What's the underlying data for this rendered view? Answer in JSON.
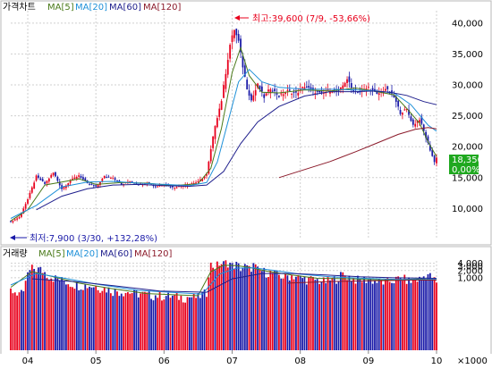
{
  "colors": {
    "up": "#e8001c",
    "down": "#1a1aa8",
    "ma5": "#4a7a1a",
    "ma20": "#1e90d8",
    "ma60": "#1e1e8c",
    "ma120": "#8b1a2a",
    "grid": "#cfcfcf",
    "current_price_box": "#1fa81f"
  },
  "chart_data": [
    {
      "type": "candlestick",
      "title": "가격차트",
      "legend": [
        "MA[5]",
        "MA[20]",
        "MA[60]",
        "MA[120]"
      ],
      "ylim": [
        5000,
        42000
      ],
      "y_ticks": [
        10000,
        15000,
        20000,
        25000,
        30000,
        35000,
        40000
      ],
      "y_tick_labels": [
        "10,000",
        "15,000",
        "20,000",
        "25,000",
        "30,000",
        "35,000",
        "40,000"
      ],
      "x_tick_labels": [
        "04",
        "05",
        "06",
        "07",
        "08",
        "09",
        "10"
      ],
      "grid": true,
      "high_annotation": "최고:39,600 (7/9, -53,66%)",
      "low_annotation": "최저:7,900 (3/30, +132,28%)",
      "current_price_label": "18,350",
      "current_change_label": "0,00%",
      "close_points": [
        [
          0,
          7900
        ],
        [
          4,
          8600
        ],
        [
          8,
          11500
        ],
        [
          12,
          15200
        ],
        [
          16,
          14000
        ],
        [
          20,
          15800
        ],
        [
          24,
          13200
        ],
        [
          28,
          14500
        ],
        [
          32,
          15400
        ],
        [
          36,
          14000
        ],
        [
          40,
          13500
        ],
        [
          44,
          15200
        ],
        [
          48,
          15000
        ],
        [
          52,
          13800
        ],
        [
          56,
          14500
        ],
        [
          60,
          13900
        ],
        [
          64,
          14200
        ],
        [
          68,
          13500
        ],
        [
          72,
          14000
        ],
        [
          76,
          13400
        ],
        [
          80,
          13700
        ],
        [
          84,
          14000
        ],
        [
          88,
          14300
        ],
        [
          92,
          15500
        ],
        [
          94,
          19500
        ],
        [
          96,
          23500
        ],
        [
          99,
          27500
        ],
        [
          101,
          32000
        ],
        [
          103,
          36500
        ],
        [
          105,
          39000
        ],
        [
          107,
          37000
        ],
        [
          109,
          33000
        ],
        [
          111,
          29500
        ],
        [
          113,
          27500
        ],
        [
          116,
          30000
        ],
        [
          119,
          28000
        ],
        [
          122,
          29500
        ],
        [
          126,
          28200
        ],
        [
          130,
          29000
        ],
        [
          134,
          28600
        ],
        [
          138,
          29800
        ],
        [
          142,
          29000
        ],
        [
          146,
          28500
        ],
        [
          150,
          29200
        ],
        [
          154,
          28800
        ],
        [
          158,
          31000
        ],
        [
          160,
          29500
        ],
        [
          164,
          28800
        ],
        [
          168,
          29600
        ],
        [
          172,
          28400
        ],
        [
          176,
          29400
        ],
        [
          180,
          28000
        ],
        [
          183,
          25500
        ],
        [
          186,
          26000
        ],
        [
          189,
          23500
        ],
        [
          192,
          24500
        ],
        [
          195,
          21500
        ],
        [
          197,
          19500
        ],
        [
          199,
          17500
        ],
        [
          200,
          18350
        ]
      ],
      "ma_points": [
        {
          "name": "MA[5]",
          "points": [
            [
              0,
              8000
            ],
            [
              8,
              9800
            ],
            [
              16,
              13800
            ],
            [
              24,
              14300
            ],
            [
              32,
              14800
            ],
            [
              40,
              13900
            ],
            [
              52,
              14200
            ],
            [
              64,
              14100
            ],
            [
              76,
              13700
            ],
            [
              88,
              14000
            ],
            [
              94,
              16500
            ],
            [
              99,
              23000
            ],
            [
              104,
              32000
            ],
            [
              108,
              36000
            ],
            [
              112,
              31500
            ],
            [
              118,
              28800
            ],
            [
              126,
              28700
            ],
            [
              138,
              29200
            ],
            [
              150,
              29000
            ],
            [
              162,
              29500
            ],
            [
              172,
              28900
            ],
            [
              180,
              28400
            ],
            [
              186,
              26200
            ],
            [
              192,
              23800
            ],
            [
              196,
              20800
            ],
            [
              200,
              18400
            ]
          ]
        },
        {
          "name": "MA[20]",
          "points": [
            [
              0,
              8400
            ],
            [
              12,
              10500
            ],
            [
              24,
              13500
            ],
            [
              36,
              14300
            ],
            [
              48,
              14400
            ],
            [
              60,
              14100
            ],
            [
              72,
              13900
            ],
            [
              84,
              13700
            ],
            [
              92,
              14200
            ],
            [
              97,
              17500
            ],
            [
              102,
              24000
            ],
            [
              107,
              30500
            ],
            [
              112,
              32500
            ],
            [
              118,
              30500
            ],
            [
              126,
              29600
            ],
            [
              138,
              29300
            ],
            [
              150,
              29300
            ],
            [
              162,
              29200
            ],
            [
              172,
              29000
            ],
            [
              180,
              28700
            ],
            [
              188,
              26800
            ],
            [
              196,
              23500
            ],
            [
              200,
              22500
            ]
          ]
        },
        {
          "name": "MA[60]",
          "points": [
            [
              12,
              9800
            ],
            [
              24,
              12000
            ],
            [
              36,
              13200
            ],
            [
              48,
              13800
            ],
            [
              60,
              13900
            ],
            [
              72,
              13700
            ],
            [
              84,
              13600
            ],
            [
              92,
              13800
            ],
            [
              100,
              16000
            ],
            [
              108,
              20500
            ],
            [
              116,
              24000
            ],
            [
              126,
              26500
            ],
            [
              138,
              28200
            ],
            [
              150,
              28900
            ],
            [
              162,
              28900
            ],
            [
              170,
              29000
            ],
            [
              178,
              28800
            ],
            [
              186,
              28300
            ],
            [
              194,
              27300
            ],
            [
              200,
              26800
            ]
          ]
        },
        {
          "name": "MA[120]",
          "points": [
            [
              126,
              15000
            ],
            [
              138,
              16300
            ],
            [
              150,
              17600
            ],
            [
              162,
              19200
            ],
            [
              172,
              20600
            ],
            [
              182,
              22000
            ],
            [
              190,
              22800
            ],
            [
              196,
              23100
            ],
            [
              200,
              22900
            ]
          ]
        }
      ]
    },
    {
      "type": "bar",
      "title": "거래량",
      "legend": [
        "MA[5]",
        "MA[20]",
        "MA[60]",
        "MA[120]"
      ],
      "y_scale": "log",
      "ylim": [
        0,
        5000
      ],
      "y_ticks": [
        1000,
        2000,
        3000,
        4000
      ],
      "y_tick_labels": [
        "1,000",
        "2,000",
        "3,000",
        "4,000"
      ],
      "unit_label": "×1000",
      "x_tick_labels": [
        "04",
        "05",
        "06",
        "07",
        "08",
        "09",
        "10"
      ],
      "grid": true,
      "volume_points": [
        [
          0,
          300
        ],
        [
          6,
          200
        ],
        [
          10,
          2500
        ],
        [
          14,
          2200
        ],
        [
          18,
          1200
        ],
        [
          22,
          900
        ],
        [
          28,
          600
        ],
        [
          34,
          500
        ],
        [
          40,
          450
        ],
        [
          48,
          300
        ],
        [
          56,
          250
        ],
        [
          64,
          200
        ],
        [
          72,
          180
        ],
        [
          80,
          160
        ],
        [
          88,
          160
        ],
        [
          92,
          250
        ],
        [
          94,
          3500
        ],
        [
          96,
          2800
        ],
        [
          98,
          4000
        ],
        [
          100,
          3800
        ],
        [
          102,
          4700
        ],
        [
          104,
          3200
        ],
        [
          106,
          3600
        ],
        [
          108,
          2600
        ],
        [
          110,
          3000
        ],
        [
          112,
          2300
        ],
        [
          114,
          3400
        ],
        [
          116,
          2100
        ],
        [
          120,
          1800
        ],
        [
          124,
          1500
        ],
        [
          128,
          1100
        ],
        [
          132,
          1300
        ],
        [
          136,
          1000
        ],
        [
          140,
          900
        ],
        [
          144,
          800
        ],
        [
          148,
          700
        ],
        [
          152,
          900
        ],
        [
          156,
          1400
        ],
        [
          160,
          1000
        ],
        [
          164,
          800
        ],
        [
          168,
          900
        ],
        [
          172,
          700
        ],
        [
          176,
          650
        ],
        [
          180,
          800
        ],
        [
          184,
          1000
        ],
        [
          188,
          700
        ],
        [
          192,
          900
        ],
        [
          196,
          1400
        ],
        [
          200,
          600
        ]
      ],
      "ma_points": [
        {
          "name": "MA[5]",
          "points": [
            [
              0,
              400
            ],
            [
              10,
              1800
            ],
            [
              20,
              1100
            ],
            [
              32,
              600
            ],
            [
              48,
              350
            ],
            [
              64,
              220
            ],
            [
              88,
              180
            ],
            [
              94,
              1800
            ],
            [
              100,
              3300
            ],
            [
              106,
              3200
            ],
            [
              112,
              2700
            ],
            [
              120,
              1900
            ],
            [
              132,
              1300
            ],
            [
              144,
              950
            ],
            [
              160,
              900
            ],
            [
              176,
              800
            ],
            [
              192,
              900
            ],
            [
              200,
              800
            ]
          ]
        },
        {
          "name": "MA[20]",
          "points": [
            [
              0,
              500
            ],
            [
              12,
              1500
            ],
            [
              24,
              1000
            ],
            [
              40,
              550
            ],
            [
              60,
              300
            ],
            [
              90,
              210
            ],
            [
              98,
              1400
            ],
            [
              106,
              2500
            ],
            [
              114,
              2600
            ],
            [
              124,
              2000
            ],
            [
              136,
              1400
            ],
            [
              150,
              1100
            ],
            [
              166,
              950
            ],
            [
              182,
              850
            ],
            [
              200,
              850
            ]
          ]
        },
        {
          "name": "MA[60]",
          "points": [
            [
              10,
              900
            ],
            [
              30,
              700
            ],
            [
              50,
              450
            ],
            [
              70,
              280
            ],
            [
              92,
              250
            ],
            [
              104,
              900
            ],
            [
              118,
              1500
            ],
            [
              132,
              1500
            ],
            [
              148,
              1300
            ],
            [
              164,
              1100
            ],
            [
              180,
              1000
            ],
            [
              200,
              950
            ]
          ]
        },
        {
          "name": "MA[120]",
          "points": [
            [
              130,
              600
            ],
            [
              150,
              700
            ],
            [
              170,
              750
            ],
            [
              190,
              800
            ],
            [
              200,
              800
            ]
          ]
        }
      ]
    }
  ]
}
